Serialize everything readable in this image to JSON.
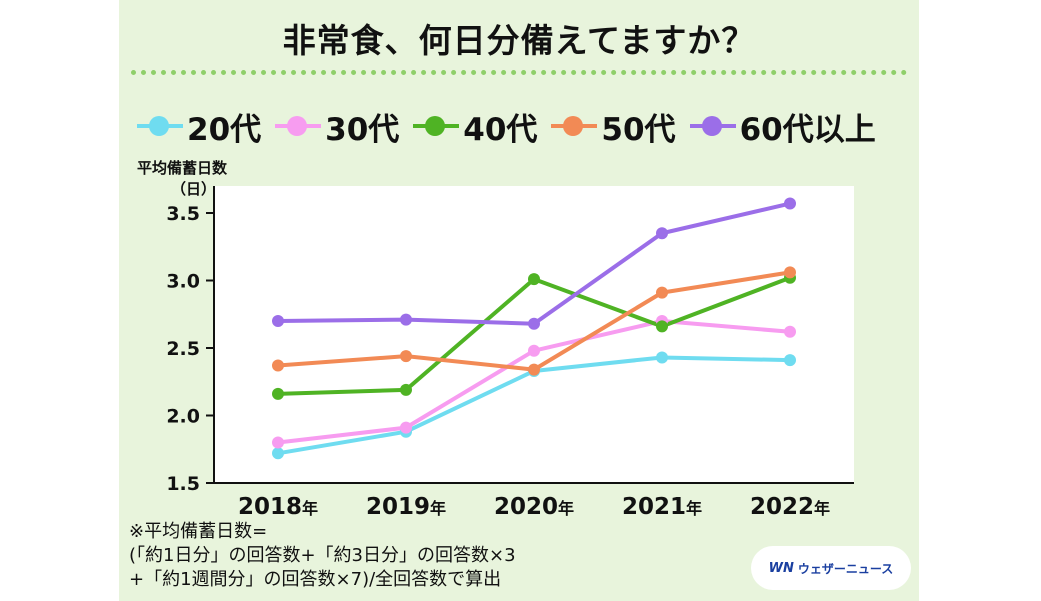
{
  "title": "非常食、何日分備えてますか？",
  "legend": [
    {
      "label": "20代",
      "color": "#6fdcf0"
    },
    {
      "label": "30代",
      "color": "#f79cf0"
    },
    {
      "label": "40代",
      "color": "#4fb324"
    },
    {
      "label": "50代",
      "color": "#f28a55"
    },
    {
      "label": "60代以上",
      "color": "#9b6ee8"
    }
  ],
  "y_axis_title": "平均備蓄日数",
  "y_axis_unit": "（日）",
  "note": {
    "line1": "※平均備蓄日数=",
    "line2": "(「約1日分」の回答数+「約3日分」の回答数×3",
    "line3": "+「約1週間分」の回答数×7)/全回答数で算出"
  },
  "brand": {
    "logo": "WN",
    "text": "ウェザーニュース"
  },
  "chart_data": {
    "type": "line",
    "categories": [
      "2018",
      "2019",
      "2020",
      "2021",
      "2022"
    ],
    "category_suffix": "年",
    "ylim": [
      1.5,
      3.7
    ],
    "yticks": [
      "1.5",
      "2.0",
      "2.5",
      "3.0",
      "3.5"
    ],
    "series": [
      {
        "name": "20代",
        "color": "#6fdcf0",
        "values": [
          1.72,
          1.88,
          2.33,
          2.43,
          2.41
        ]
      },
      {
        "name": "30代",
        "color": "#f79cf0",
        "values": [
          1.8,
          1.91,
          2.48,
          2.7,
          2.62
        ]
      },
      {
        "name": "40代",
        "color": "#4fb324",
        "values": [
          2.16,
          2.19,
          3.01,
          2.66,
          3.02
        ]
      },
      {
        "name": "50代",
        "color": "#f28a55",
        "values": [
          2.37,
          2.44,
          2.34,
          2.91,
          3.06
        ]
      },
      {
        "name": "60代以上",
        "color": "#9b6ee8",
        "values": [
          2.7,
          2.71,
          2.68,
          3.35,
          3.57
        ]
      }
    ]
  }
}
